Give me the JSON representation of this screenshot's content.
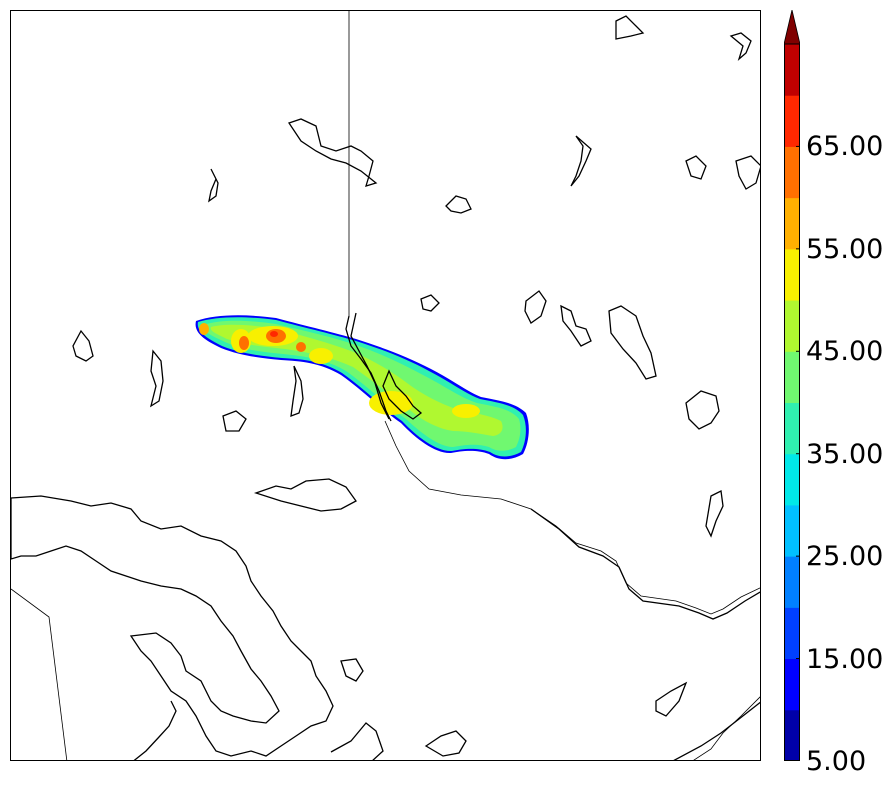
{
  "colorbar": {
    "tick_labels": [
      "5.00",
      "15.00",
      "25.00",
      "35.00",
      "45.00",
      "55.00",
      "65.00"
    ],
    "levels": [
      5,
      10,
      15,
      20,
      25,
      30,
      35,
      40,
      45,
      50,
      55,
      60,
      65,
      70
    ],
    "colors": [
      "#0000a8",
      "#0000ff",
      "#0040ff",
      "#0080ff",
      "#00c0ff",
      "#00e8e8",
      "#30f0b0",
      "#70f870",
      "#b0f830",
      "#f8f000",
      "#ffb000",
      "#ff7000",
      "#ff2800",
      "#c00000"
    ],
    "extend_color": "#800000",
    "extend": "max"
  }
}
